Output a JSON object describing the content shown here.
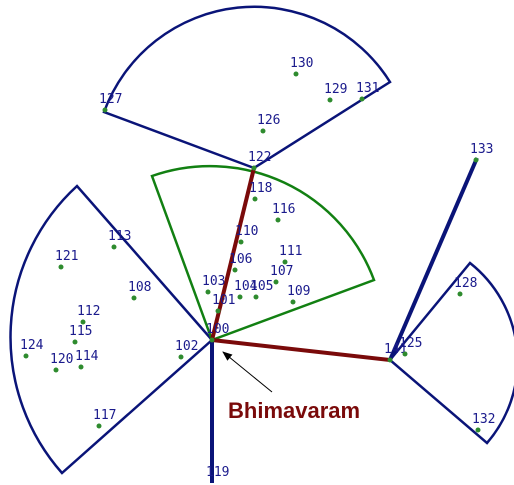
{
  "nodes": [
    {
      "label": "130"
    },
    {
      "label": "129"
    },
    {
      "label": "131"
    },
    {
      "label": "127"
    },
    {
      "label": "126"
    },
    {
      "label": "122"
    },
    {
      "label": "133"
    },
    {
      "label": "118"
    },
    {
      "label": "116"
    },
    {
      "label": "113"
    },
    {
      "label": "110"
    },
    {
      "label": "121"
    },
    {
      "label": "111"
    },
    {
      "label": "106"
    },
    {
      "label": "107"
    },
    {
      "label": "128"
    },
    {
      "label": "108"
    },
    {
      "label": "103"
    },
    {
      "label": "104"
    },
    {
      "label": "105"
    },
    {
      "label": "109"
    },
    {
      "label": "101"
    },
    {
      "label": "112"
    },
    {
      "label": "100"
    },
    {
      "label": "115"
    },
    {
      "label": "124"
    },
    {
      "label": "102"
    },
    {
      "label": "141"
    },
    {
      "label": "125"
    },
    {
      "label": "120"
    },
    {
      "label": "114"
    },
    {
      "label": "117"
    },
    {
      "label": "132"
    },
    {
      "label": "119"
    }
  ],
  "annotation": "Bhimavaram"
}
